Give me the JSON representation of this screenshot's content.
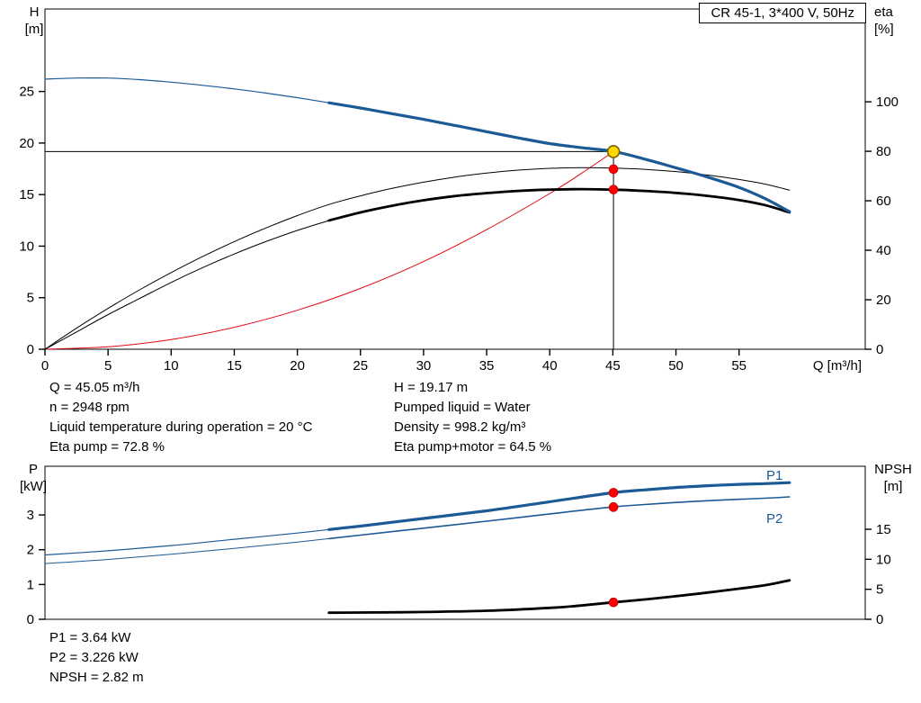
{
  "header": {
    "title_box": "CR 45-1, 3*400 V, 50Hz"
  },
  "colors": {
    "curve_blue": "#1c5a96",
    "curve_red": "#e30613",
    "marker_red": "#ff0000",
    "marker_yellow": "#ffd800",
    "axis": "#000000"
  },
  "info_top": {
    "left": [
      "Q = 45.05 m³/h",
      "n = 2948 rpm",
      "Liquid temperature during operation = 20 °C",
      "Eta pump = 72.8 %"
    ],
    "right": [
      "H = 19.17 m",
      "Pumped liquid = Water",
      "Density = 998.2 kg/m³",
      "Eta pump+motor = 64.5 %"
    ]
  },
  "info_bottom": [
    "P1 = 3.64 kW",
    "P2 = 3.226 kW",
    "NPSH = 2.82 m"
  ],
  "chart_data": [
    {
      "type": "line",
      "title": "CR 45-1, 3*400 V, 50Hz",
      "x_axis": {
        "label": "Q [m³/h]",
        "range": [
          0,
          65
        ],
        "ticks": [
          0,
          5,
          10,
          15,
          20,
          25,
          30,
          35,
          40,
          45,
          50,
          55
        ]
      },
      "y_left": {
        "name": "H",
        "unit": "[m]",
        "range": [
          0,
          33
        ],
        "ticks": [
          0,
          5,
          10,
          15,
          20,
          25
        ]
      },
      "y_right": {
        "name": "eta",
        "unit": "[%]",
        "range": [
          0,
          137.5
        ],
        "ticks": [
          0,
          20,
          40,
          60,
          80,
          100
        ]
      },
      "grid": false,
      "legend": "none",
      "duty_point": {
        "q": 45.05,
        "h": 19.17
      },
      "series": [
        {
          "name": "qh-duty-parabola",
          "axis": "left",
          "color": "red",
          "thin_width": 1,
          "thick_width": 1,
          "thick_from": null,
          "points": [
            [
              0,
              0
            ],
            [
              5,
              0.24
            ],
            [
              10,
              0.94
            ],
            [
              15,
              2.13
            ],
            [
              20,
              3.78
            ],
            [
              25,
              5.9
            ],
            [
              30,
              8.5
            ],
            [
              35,
              11.6
            ],
            [
              40,
              15.1
            ],
            [
              42.5,
              17.05
            ],
            [
              45.05,
              19.17
            ]
          ]
        },
        {
          "name": "eta-pump-curve",
          "axis": "right",
          "color": "black",
          "thin_width": 1,
          "thick_width": 1,
          "thick_from": null,
          "points": [
            [
              0,
              0
            ],
            [
              2.5,
              8.5
            ],
            [
              5,
              16.5
            ],
            [
              7.5,
              24
            ],
            [
              10,
              31
            ],
            [
              12.5,
              37.5
            ],
            [
              15,
              43.5
            ],
            [
              17.5,
              49
            ],
            [
              20,
              54
            ],
            [
              22.5,
              58.5
            ],
            [
              25,
              62
            ],
            [
              27.5,
              65
            ],
            [
              30,
              67.5
            ],
            [
              32.5,
              69.6
            ],
            [
              35,
              71.2
            ],
            [
              37.5,
              72.4
            ],
            [
              40,
              73.1
            ],
            [
              42.5,
              73.4
            ],
            [
              45,
              73.2
            ],
            [
              47.5,
              72.7
            ],
            [
              50,
              71.8
            ],
            [
              52.5,
              70.4
            ],
            [
              55,
              68.6
            ],
            [
              57,
              66.8
            ],
            [
              59,
              64.3
            ]
          ]
        },
        {
          "name": "eta-pump-motor-curve",
          "axis": "right",
          "color": "black",
          "thin_width": 1,
          "thick_width": 2.8,
          "thick_from": 22.5,
          "points": [
            [
              0,
              0
            ],
            [
              2.5,
              7
            ],
            [
              5,
              14
            ],
            [
              7.5,
              20.5
            ],
            [
              10,
              27
            ],
            [
              12.5,
              33
            ],
            [
              15,
              38.5
            ],
            [
              17.5,
              43.5
            ],
            [
              20,
              48
            ],
            [
              22.5,
              52
            ],
            [
              25,
              55.3
            ],
            [
              27.5,
              58
            ],
            [
              30,
              60.2
            ],
            [
              32.5,
              61.9
            ],
            [
              35,
              63.1
            ],
            [
              37.5,
              64
            ],
            [
              40,
              64.5
            ],
            [
              42.5,
              64.7
            ],
            [
              45,
              64.5
            ],
            [
              47.5,
              64
            ],
            [
              50,
              63.2
            ],
            [
              52.5,
              62
            ],
            [
              55,
              60.3
            ],
            [
              57,
              58.3
            ],
            [
              59,
              55.3
            ]
          ]
        },
        {
          "name": "head-curve",
          "axis": "left",
          "color": "blue",
          "thin_width": 1.2,
          "thick_width": 3.2,
          "thick_from": 22.5,
          "points": [
            [
              0,
              26.2
            ],
            [
              2.5,
              26.3
            ],
            [
              5,
              26.3
            ],
            [
              7.5,
              26.15
            ],
            [
              10,
              25.9
            ],
            [
              12.5,
              25.6
            ],
            [
              15,
              25.25
            ],
            [
              17.5,
              24.85
            ],
            [
              20,
              24.4
            ],
            [
              22.5,
              23.9
            ],
            [
              25,
              23.4
            ],
            [
              27.5,
              22.85
            ],
            [
              30,
              22.3
            ],
            [
              32.5,
              21.7
            ],
            [
              35,
              21.1
            ],
            [
              37.5,
              20.5
            ],
            [
              40,
              19.95
            ],
            [
              42.5,
              19.55
            ],
            [
              45,
              19.2
            ],
            [
              47.5,
              18.45
            ],
            [
              50,
              17.6
            ],
            [
              52.5,
              16.7
            ],
            [
              55,
              15.7
            ],
            [
              57,
              14.65
            ],
            [
              59,
              13.35
            ]
          ]
        }
      ],
      "markers": [
        {
          "q": 45.05,
          "v": 19.17,
          "axis": "left",
          "style": "yellow"
        },
        {
          "q": 45.05,
          "v": 72.8,
          "axis": "right",
          "style": "red"
        },
        {
          "q": 45.05,
          "v": 64.5,
          "axis": "right",
          "style": "red"
        }
      ]
    },
    {
      "type": "line",
      "title": "",
      "x_axis": {
        "label": "",
        "range": [
          0,
          65
        ],
        "ticks": []
      },
      "y_left": {
        "name": "P",
        "unit": "[kW]",
        "range": [
          0,
          4.4
        ],
        "ticks": [
          0,
          1,
          2,
          3
        ]
      },
      "y_right": {
        "name": "NPSH",
        "unit": "[m]",
        "range": [
          0,
          25.5
        ],
        "ticks": [
          0,
          5,
          10,
          15
        ]
      },
      "grid": false,
      "legend": "inline",
      "series": [
        {
          "name": "npsh-curve",
          "axis": "right",
          "color": "black",
          "thin_width": 2.8,
          "thick_width": 2.8,
          "thick_from": null,
          "points": [
            [
              22.5,
              1.1
            ],
            [
              25,
              1.12
            ],
            [
              30,
              1.22
            ],
            [
              35,
              1.42
            ],
            [
              40,
              1.9
            ],
            [
              42.5,
              2.3
            ],
            [
              45,
              2.82
            ],
            [
              47.5,
              3.3
            ],
            [
              50,
              3.85
            ],
            [
              52.5,
              4.45
            ],
            [
              55,
              5.1
            ],
            [
              57,
              5.65
            ],
            [
              59,
              6.5
            ]
          ]
        },
        {
          "name": "p2-curve",
          "axis": "left",
          "color": "blue",
          "thin_width": 1,
          "thick_width": 1.6,
          "thick_from": 22.5,
          "points": [
            [
              0,
              1.6
            ],
            [
              5,
              1.72
            ],
            [
              10,
              1.87
            ],
            [
              15,
              2.04
            ],
            [
              20,
              2.22
            ],
            [
              22.5,
              2.32
            ],
            [
              25,
              2.42
            ],
            [
              30,
              2.62
            ],
            [
              35,
              2.82
            ],
            [
              40,
              3.03
            ],
            [
              45,
              3.23
            ],
            [
              47.5,
              3.3
            ],
            [
              50,
              3.36
            ],
            [
              52.5,
              3.41
            ],
            [
              55,
              3.45
            ],
            [
              57,
              3.48
            ],
            [
              59,
              3.52
            ]
          ]
        },
        {
          "name": "p1-curve",
          "axis": "left",
          "color": "blue",
          "thin_width": 1.2,
          "thick_width": 3.2,
          "thick_from": 22.5,
          "points": [
            [
              0,
              1.85
            ],
            [
              5,
              1.97
            ],
            [
              10,
              2.12
            ],
            [
              15,
              2.3
            ],
            [
              20,
              2.48
            ],
            [
              22.5,
              2.58
            ],
            [
              25,
              2.68
            ],
            [
              30,
              2.9
            ],
            [
              35,
              3.12
            ],
            [
              40,
              3.38
            ],
            [
              45,
              3.64
            ],
            [
              47.5,
              3.72
            ],
            [
              50,
              3.79
            ],
            [
              52.5,
              3.84
            ],
            [
              55,
              3.88
            ],
            [
              57,
              3.9
            ],
            [
              59,
              3.93
            ]
          ]
        }
      ],
      "series_labels": [
        {
          "text": "P1"
        },
        {
          "text": "P2"
        }
      ],
      "markers": [
        {
          "q": 45.05,
          "v": 3.64,
          "axis": "left",
          "style": "red"
        },
        {
          "q": 45.05,
          "v": 3.226,
          "axis": "left",
          "style": "red"
        },
        {
          "q": 45.05,
          "v": 2.82,
          "axis": "right",
          "style": "red"
        }
      ]
    }
  ]
}
